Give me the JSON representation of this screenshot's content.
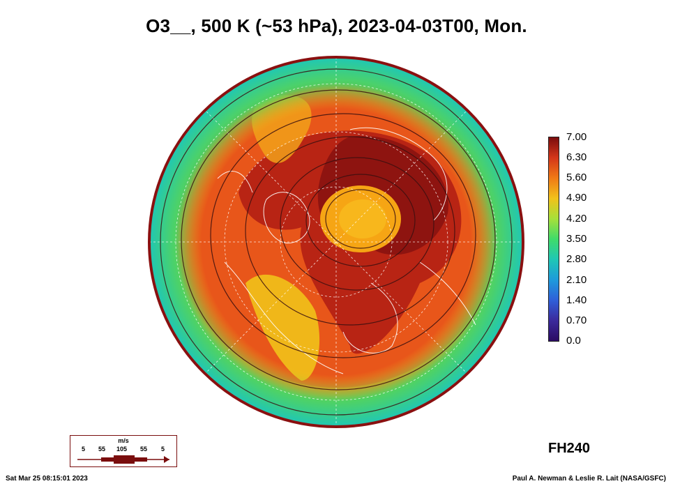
{
  "title": "O3__, 500 K (~53 hPa), 2023-04-03T00, Mon.",
  "colorbar": {
    "labels": [
      "7.00",
      "6.30",
      "5.60",
      "4.90",
      "4.20",
      "3.50",
      "2.80",
      "2.10",
      "1.40",
      "0.70",
      "0.0"
    ]
  },
  "forecast_hour": "FH240",
  "wind_key": {
    "units": "m/s",
    "ticks": [
      "5",
      "55",
      "105",
      "55",
      "5"
    ]
  },
  "footer": {
    "timestamp": "Sat Mar 25 08:15:01 2023",
    "credit": "Paul A. Newman & Leslie R. Lait (NASA/GSFC)"
  },
  "colors": {
    "outer_ring": "#8a1010",
    "max": "#7a0d0d",
    "high": "#d4361a",
    "mid": "#f07a16",
    "orange": "#f1a01a",
    "yellow": "#f1c21a",
    "low_green": "#3fdc6a",
    "teal": "#1fc7b5"
  }
}
